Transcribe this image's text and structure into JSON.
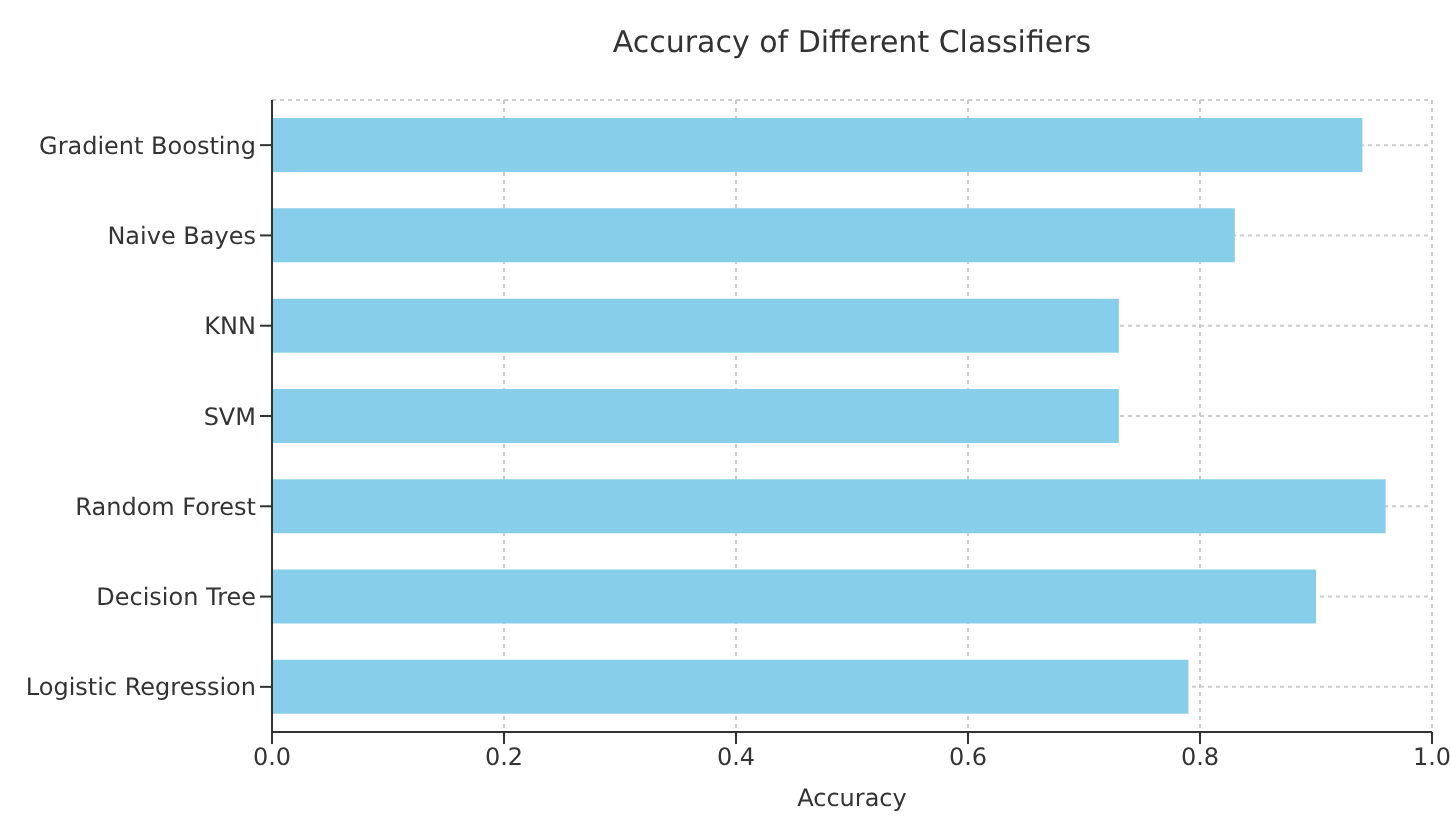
{
  "chart_data": {
    "type": "bar",
    "orientation": "horizontal",
    "title": "Accuracy of Different Classifiers",
    "xlabel": "Accuracy",
    "categories": [
      "Gradient Boosting",
      "Naive Bayes",
      "KNN",
      "SVM",
      "Random Forest",
      "Decision Tree",
      "Logistic Regression"
    ],
    "values": [
      0.94,
      0.83,
      0.73,
      0.73,
      0.96,
      0.9,
      0.79
    ],
    "color": "#87ceeb",
    "xlim": [
      0,
      1
    ],
    "xticks": [
      {
        "value": 0,
        "label": "0.0"
      },
      {
        "value": 0.2,
        "label": "0.2"
      },
      {
        "value": 0.4,
        "label": "0.4"
      },
      {
        "value": 0.6,
        "label": "0.6"
      },
      {
        "value": 0.8,
        "label": "0.8"
      },
      {
        "value": 1,
        "label": "1.0"
      }
    ],
    "grid": true
  }
}
